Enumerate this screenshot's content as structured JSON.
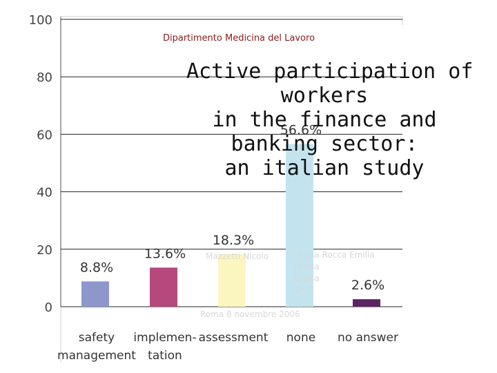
{
  "header": {
    "department": "Dipartimento Medicina del Lavoro"
  },
  "title_lines": [
    "Active participation of",
    "workers",
    "in the finance and",
    "banking sector:",
    "an italian study"
  ],
  "faint_text": {
    "author_left": "Mazzetti Nicolo",
    "authors_right": [
      "Dr.ssa Rocca Emilia",
      "Dr.ssa",
      "Dr.ssa",
      "Dr. P"
    ],
    "footer_date": "Roma 8 novembre 2006"
  },
  "chart_data": {
    "type": "bar",
    "categories": [
      [
        "safety",
        "management"
      ],
      [
        "implemen-",
        "tation"
      ],
      [
        "assessment"
      ],
      [
        "none"
      ],
      [
        "no answer"
      ]
    ],
    "values": [
      8.8,
      13.6,
      18.3,
      56.6,
      2.6
    ],
    "data_labels": [
      "8.8%",
      "13.6%",
      "18.3%",
      "56.6%",
      "2.6%"
    ],
    "bar_colors": [
      "#8e96cc",
      "#b5497e",
      "#fbf6bf",
      "#c3e4ee",
      "#5c2463"
    ],
    "yticks": [
      "0",
      "20",
      "40",
      "60",
      "80",
      "100"
    ],
    "ylim": [
      0,
      100
    ],
    "gridlines": true
  }
}
